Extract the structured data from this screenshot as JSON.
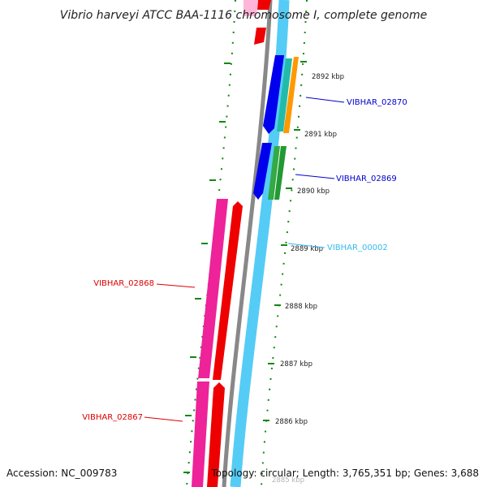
{
  "title": "Vibrio harveyi ATCC BAA-1116 chromosome I, complete genome",
  "ticks": [
    "2892 kbp",
    "2891 kbp",
    "2890 kbp",
    "2889 kbp",
    "2888 kbp",
    "2887 kbp",
    "2886 kbp",
    "2885 kbp"
  ],
  "gene_labels": [
    {
      "text": "VIBHAR_02870",
      "color": "#0000cc"
    },
    {
      "text": "VIBHAR_02869",
      "color": "#0000cc"
    },
    {
      "text": "VIBHAR_00002",
      "color": "#33bbee"
    },
    {
      "text": "VIBHAR_02868",
      "color": "#dd0000"
    },
    {
      "text": "VIBHAR_02867",
      "color": "#dd0000"
    }
  ],
  "footer": {
    "accession": "Accession: NC_009783",
    "summary": "Topology: circular; Length: 3,765,351 bp; Genes: 3,688"
  },
  "colors": {
    "backbone": "#888888",
    "rna_track": "#55ccf5",
    "cds_plus": "#0000ee",
    "cds_minus": "#ee0000",
    "gene_minus": "#ee2299",
    "gc_ticks": "#118811",
    "orange_feature": "#ff9900",
    "teal_feature": "#22bbaa",
    "green_feature": "#33aa44"
  }
}
